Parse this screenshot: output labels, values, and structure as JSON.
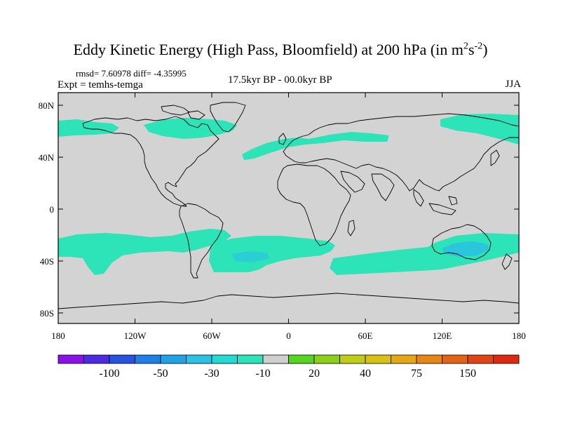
{
  "title": {
    "main": "Eddy Kinetic Energy (High Pass, Bloomfield) at 200 hPa (in m",
    "sup1": "2",
    "mid": "s",
    "sup2": "-2",
    "close": ")"
  },
  "stats": "rmsd= 7.60978 diff= -4.35995",
  "experiment": "Expt = temhs-temga",
  "period": "17.5kyr BP - 00.0kyr BP",
  "season": "JJA",
  "lat_ticks": [
    "80N",
    "40N",
    "0",
    "40S",
    "80S"
  ],
  "lon_ticks": [
    "180",
    "120W",
    "60W",
    "0",
    "60E",
    "120E",
    "180"
  ],
  "colorbar": {
    "colors": [
      "#8a12e6",
      "#4b2ce0",
      "#2a52e0",
      "#1f7fe6",
      "#21a2e6",
      "#2ac1e4",
      "#22d9d6",
      "#2de3b8",
      "#cfcfcf",
      "#55d420",
      "#8ccf18",
      "#bfcc18",
      "#d9c114",
      "#e4a814",
      "#e68614",
      "#e26414",
      "#df4414",
      "#dc2a12"
    ],
    "labels": [
      "-100",
      "-50",
      "-30",
      "-10",
      "20",
      "40",
      "75",
      "150"
    ]
  },
  "colors": {
    "ocean_land_zero": "#d3d3d3",
    "negative_band": "#2de3b8",
    "negative_core": "#2ac1e4",
    "coast": "#000000"
  }
}
